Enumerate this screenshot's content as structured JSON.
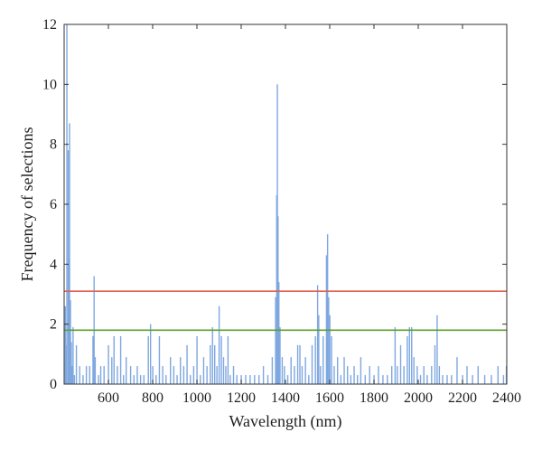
{
  "chart_data": {
    "type": "bar",
    "title": "",
    "xlabel": "Wavelength (nm)",
    "ylabel": "Frequency of selections",
    "xlim": [
      400,
      2400
    ],
    "ylim": [
      0,
      12
    ],
    "x_ticks": [
      600,
      800,
      1000,
      1200,
      1400,
      1600,
      1800,
      2000,
      2200,
      2400
    ],
    "y_ticks": [
      0,
      2,
      4,
      6,
      8,
      10,
      12
    ],
    "grid": false,
    "bar_color": "#7ea7e0",
    "thresholds": [
      {
        "value": 3.1,
        "color": "#e06050"
      },
      {
        "value": 1.8,
        "color": "#5aa02c"
      }
    ],
    "spikes": [
      {
        "x": 405,
        "y": 2.6
      },
      {
        "x": 408,
        "y": 1.3
      },
      {
        "x": 412,
        "y": 12.0
      },
      {
        "x": 418,
        "y": 7.8
      },
      {
        "x": 420,
        "y": 4.2
      },
      {
        "x": 424,
        "y": 8.7
      },
      {
        "x": 428,
        "y": 2.8
      },
      {
        "x": 432,
        "y": 1.4
      },
      {
        "x": 436,
        "y": 0.6
      },
      {
        "x": 440,
        "y": 1.9
      },
      {
        "x": 446,
        "y": 0.3
      },
      {
        "x": 455,
        "y": 1.3
      },
      {
        "x": 470,
        "y": 0.6
      },
      {
        "x": 485,
        "y": 0.3
      },
      {
        "x": 500,
        "y": 0.6
      },
      {
        "x": 515,
        "y": 0.6
      },
      {
        "x": 530,
        "y": 1.6
      },
      {
        "x": 535,
        "y": 3.6
      },
      {
        "x": 540,
        "y": 0.9
      },
      {
        "x": 555,
        "y": 0.3
      },
      {
        "x": 565,
        "y": 0.6
      },
      {
        "x": 580,
        "y": 0.6
      },
      {
        "x": 600,
        "y": 1.3
      },
      {
        "x": 615,
        "y": 0.9
      },
      {
        "x": 625,
        "y": 1.6
      },
      {
        "x": 640,
        "y": 0.6
      },
      {
        "x": 655,
        "y": 1.6
      },
      {
        "x": 668,
        "y": 0.3
      },
      {
        "x": 680,
        "y": 0.9
      },
      {
        "x": 700,
        "y": 0.6
      },
      {
        "x": 715,
        "y": 0.3
      },
      {
        "x": 730,
        "y": 0.6
      },
      {
        "x": 745,
        "y": 0.3
      },
      {
        "x": 760,
        "y": 0.3
      },
      {
        "x": 780,
        "y": 1.6
      },
      {
        "x": 790,
        "y": 2.0
      },
      {
        "x": 800,
        "y": 0.6
      },
      {
        "x": 815,
        "y": 0.3
      },
      {
        "x": 830,
        "y": 1.6
      },
      {
        "x": 845,
        "y": 0.6
      },
      {
        "x": 860,
        "y": 0.3
      },
      {
        "x": 880,
        "y": 0.9
      },
      {
        "x": 895,
        "y": 0.6
      },
      {
        "x": 910,
        "y": 0.3
      },
      {
        "x": 925,
        "y": 0.9
      },
      {
        "x": 940,
        "y": 0.6
      },
      {
        "x": 955,
        "y": 1.3
      },
      {
        "x": 970,
        "y": 0.3
      },
      {
        "x": 985,
        "y": 0.6
      },
      {
        "x": 1000,
        "y": 1.6
      },
      {
        "x": 1015,
        "y": 0.3
      },
      {
        "x": 1030,
        "y": 0.9
      },
      {
        "x": 1045,
        "y": 0.6
      },
      {
        "x": 1060,
        "y": 1.3
      },
      {
        "x": 1070,
        "y": 1.9
      },
      {
        "x": 1080,
        "y": 1.3
      },
      {
        "x": 1090,
        "y": 0.6
      },
      {
        "x": 1100,
        "y": 2.6
      },
      {
        "x": 1110,
        "y": 1.6
      },
      {
        "x": 1120,
        "y": 0.9
      },
      {
        "x": 1130,
        "y": 0.6
      },
      {
        "x": 1140,
        "y": 1.6
      },
      {
        "x": 1150,
        "y": 0.3
      },
      {
        "x": 1165,
        "y": 0.6
      },
      {
        "x": 1180,
        "y": 0.3
      },
      {
        "x": 1200,
        "y": 0.3
      },
      {
        "x": 1220,
        "y": 0.3
      },
      {
        "x": 1240,
        "y": 0.3
      },
      {
        "x": 1260,
        "y": 0.3
      },
      {
        "x": 1280,
        "y": 0.3
      },
      {
        "x": 1300,
        "y": 0.6
      },
      {
        "x": 1320,
        "y": 0.3
      },
      {
        "x": 1340,
        "y": 0.9
      },
      {
        "x": 1355,
        "y": 2.9
      },
      {
        "x": 1360,
        "y": 6.3
      },
      {
        "x": 1363,
        "y": 10.0
      },
      {
        "x": 1366,
        "y": 5.6
      },
      {
        "x": 1370,
        "y": 3.4
      },
      {
        "x": 1375,
        "y": 1.9
      },
      {
        "x": 1385,
        "y": 0.9
      },
      {
        "x": 1395,
        "y": 0.6
      },
      {
        "x": 1410,
        "y": 0.3
      },
      {
        "x": 1425,
        "y": 0.9
      },
      {
        "x": 1440,
        "y": 0.6
      },
      {
        "x": 1455,
        "y": 1.3
      },
      {
        "x": 1465,
        "y": 1.3
      },
      {
        "x": 1475,
        "y": 0.6
      },
      {
        "x": 1490,
        "y": 0.9
      },
      {
        "x": 1505,
        "y": 0.3
      },
      {
        "x": 1520,
        "y": 1.3
      },
      {
        "x": 1535,
        "y": 1.6
      },
      {
        "x": 1545,
        "y": 3.3
      },
      {
        "x": 1550,
        "y": 2.3
      },
      {
        "x": 1558,
        "y": 0.6
      },
      {
        "x": 1570,
        "y": 1.6
      },
      {
        "x": 1585,
        "y": 4.3
      },
      {
        "x": 1590,
        "y": 5.0
      },
      {
        "x": 1595,
        "y": 2.9
      },
      {
        "x": 1600,
        "y": 2.3
      },
      {
        "x": 1608,
        "y": 1.6
      },
      {
        "x": 1620,
        "y": 0.6
      },
      {
        "x": 1635,
        "y": 0.9
      },
      {
        "x": 1650,
        "y": 0.3
      },
      {
        "x": 1665,
        "y": 0.9
      },
      {
        "x": 1680,
        "y": 0.6
      },
      {
        "x": 1695,
        "y": 0.3
      },
      {
        "x": 1710,
        "y": 0.6
      },
      {
        "x": 1725,
        "y": 0.3
      },
      {
        "x": 1740,
        "y": 0.9
      },
      {
        "x": 1760,
        "y": 0.3
      },
      {
        "x": 1780,
        "y": 0.6
      },
      {
        "x": 1800,
        "y": 0.3
      },
      {
        "x": 1820,
        "y": 0.6
      },
      {
        "x": 1840,
        "y": 0.3
      },
      {
        "x": 1860,
        "y": 0.3
      },
      {
        "x": 1880,
        "y": 0.6
      },
      {
        "x": 1895,
        "y": 1.9
      },
      {
        "x": 1905,
        "y": 0.6
      },
      {
        "x": 1920,
        "y": 1.3
      },
      {
        "x": 1935,
        "y": 0.6
      },
      {
        "x": 1950,
        "y": 1.6
      },
      {
        "x": 1960,
        "y": 1.9
      },
      {
        "x": 1970,
        "y": 1.9
      },
      {
        "x": 1980,
        "y": 0.9
      },
      {
        "x": 1995,
        "y": 0.6
      },
      {
        "x": 2010,
        "y": 0.3
      },
      {
        "x": 2025,
        "y": 0.6
      },
      {
        "x": 2040,
        "y": 0.3
      },
      {
        "x": 2060,
        "y": 0.6
      },
      {
        "x": 2075,
        "y": 1.3
      },
      {
        "x": 2085,
        "y": 2.3
      },
      {
        "x": 2095,
        "y": 0.6
      },
      {
        "x": 2110,
        "y": 0.3
      },
      {
        "x": 2130,
        "y": 0.3
      },
      {
        "x": 2150,
        "y": 0.3
      },
      {
        "x": 2175,
        "y": 0.9
      },
      {
        "x": 2200,
        "y": 0.3
      },
      {
        "x": 2220,
        "y": 0.6
      },
      {
        "x": 2245,
        "y": 0.3
      },
      {
        "x": 2270,
        "y": 0.6
      },
      {
        "x": 2300,
        "y": 0.3
      },
      {
        "x": 2330,
        "y": 0.3
      },
      {
        "x": 2360,
        "y": 0.6
      },
      {
        "x": 2385,
        "y": 0.3
      },
      {
        "x": 2398,
        "y": 0.6
      }
    ]
  }
}
